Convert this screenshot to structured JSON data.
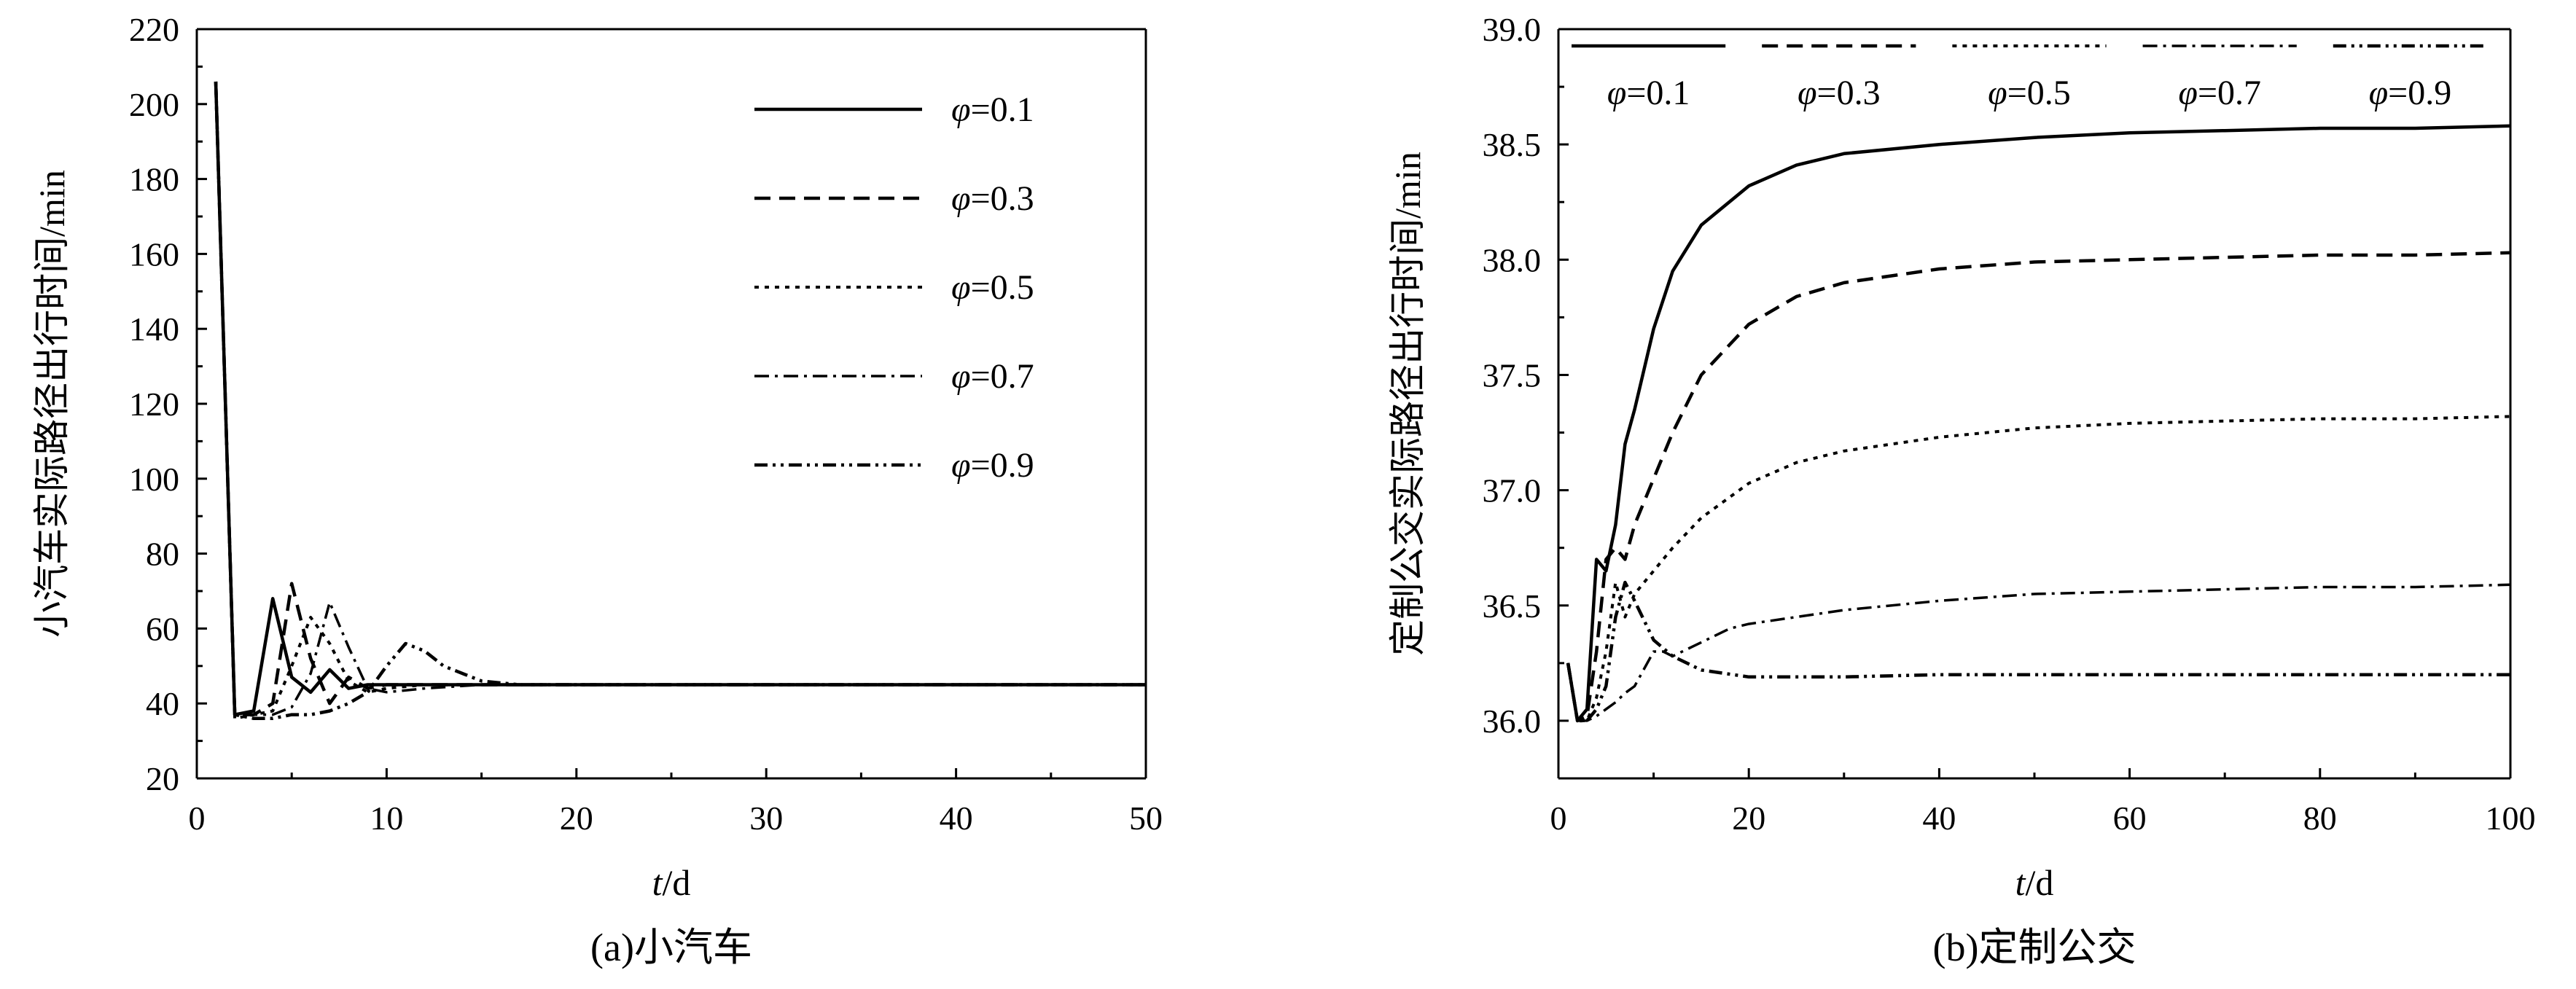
{
  "chart_data": [
    {
      "type": "line",
      "caption": "(a)小汽车",
      "xlabel_var": "t",
      "xlabel_unit": "/d",
      "ylabel": "小汽车实际路径出行时间/min",
      "xlim": [
        0,
        50
      ],
      "ylim": [
        20,
        220
      ],
      "xticks": [
        0,
        10,
        20,
        30,
        40,
        50
      ],
      "yticks": [
        20,
        40,
        60,
        80,
        100,
        120,
        140,
        160,
        180,
        200,
        220
      ],
      "legend_position": "upper-right",
      "series": [
        {
          "name": "φ=0.1",
          "style": "solid",
          "x": [
            1,
            2,
            3,
            4,
            5,
            6,
            7,
            8,
            9,
            10,
            12,
            15,
            20,
            30,
            50
          ],
          "y": [
            206,
            37,
            38,
            68,
            47,
            43,
            49,
            44,
            45,
            45,
            45,
            45,
            45,
            45,
            45
          ]
        },
        {
          "name": "φ=0.3",
          "style": "dashed",
          "x": [
            1,
            2,
            3,
            4,
            5,
            6,
            7,
            8,
            9,
            10,
            12,
            15,
            20,
            30,
            50
          ],
          "y": [
            206,
            37,
            37,
            40,
            72,
            52,
            40,
            47,
            44,
            45,
            45,
            45,
            45,
            45,
            45
          ]
        },
        {
          "name": "φ=0.5",
          "style": "dotted",
          "x": [
            1,
            2,
            3,
            4,
            5,
            6,
            7,
            8,
            9,
            10,
            12,
            15,
            20,
            30,
            50
          ],
          "y": [
            206,
            36,
            37,
            38,
            50,
            63,
            56,
            46,
            43,
            44,
            45,
            45,
            45,
            45,
            45
          ]
        },
        {
          "name": "φ=0.7",
          "style": "dashdot",
          "x": [
            1,
            2,
            3,
            4,
            5,
            6,
            7,
            8,
            9,
            10,
            12,
            15,
            20,
            30,
            50
          ],
          "y": [
            206,
            37,
            37,
            37,
            39,
            48,
            67,
            55,
            44,
            43,
            44,
            45,
            45,
            45,
            45
          ]
        },
        {
          "name": "φ=0.9",
          "style": "dashdotdot",
          "x": [
            1,
            2,
            3,
            4,
            5,
            6,
            7,
            8,
            9,
            10,
            11,
            12,
            13,
            15,
            17,
            20,
            30,
            50
          ],
          "y": [
            206,
            37,
            36,
            36,
            37,
            37,
            38,
            40,
            43,
            50,
            56,
            54,
            50,
            46,
            45,
            45,
            45,
            45
          ]
        }
      ]
    },
    {
      "type": "line",
      "caption": "(b)定制公交",
      "xlabel_var": "t",
      "xlabel_unit": "/d",
      "ylabel": "定制公交实际路径出行时间/min",
      "xlim": [
        0,
        100
      ],
      "ylim": [
        35.75,
        39.0
      ],
      "xticks": [
        0,
        20,
        40,
        60,
        80,
        100
      ],
      "yticks": [
        36.0,
        36.5,
        37.0,
        37.5,
        38.0,
        38.5,
        39.0
      ],
      "ytick_labels": [
        "36.0",
        "36.5",
        "37.0",
        "37.5",
        "38.0",
        "38.5",
        "39.0"
      ],
      "legend_position": "top",
      "series": [
        {
          "name": "φ=0.1",
          "style": "solid",
          "x": [
            1,
            2,
            3,
            4,
            5,
            6,
            7,
            8,
            10,
            12,
            15,
            20,
            25,
            30,
            40,
            50,
            60,
            70,
            80,
            90,
            100
          ],
          "y": [
            36.25,
            36.0,
            36.05,
            36.7,
            36.65,
            36.85,
            37.2,
            37.35,
            37.7,
            37.95,
            38.15,
            38.32,
            38.41,
            38.46,
            38.5,
            38.53,
            38.55,
            38.56,
            38.57,
            38.57,
            38.58
          ]
        },
        {
          "name": "φ=0.3",
          "style": "dashed",
          "x": [
            1,
            2,
            3,
            4,
            5,
            6,
            7,
            8,
            10,
            12,
            15,
            20,
            25,
            30,
            40,
            50,
            60,
            70,
            80,
            90,
            100
          ],
          "y": [
            36.25,
            36.0,
            36.02,
            36.3,
            36.7,
            36.75,
            36.7,
            36.85,
            37.05,
            37.25,
            37.5,
            37.72,
            37.84,
            37.9,
            37.96,
            37.99,
            38.0,
            38.01,
            38.02,
            38.02,
            38.03
          ]
        },
        {
          "name": "φ=0.5",
          "style": "dotted",
          "x": [
            1,
            2,
            3,
            4,
            5,
            6,
            7,
            8,
            10,
            12,
            15,
            20,
            25,
            30,
            40,
            50,
            60,
            70,
            80,
            90,
            100
          ],
          "y": [
            36.25,
            36.0,
            36.0,
            36.1,
            36.3,
            36.6,
            36.45,
            36.55,
            36.65,
            36.75,
            36.88,
            37.03,
            37.12,
            37.17,
            37.23,
            37.27,
            37.29,
            37.3,
            37.31,
            37.31,
            37.32
          ]
        },
        {
          "name": "φ=0.7",
          "style": "dashdot",
          "x": [
            1,
            2,
            3,
            4,
            5,
            6,
            7,
            8,
            10,
            11,
            12,
            15,
            18,
            20,
            25,
            30,
            40,
            50,
            60,
            70,
            80,
            90,
            100
          ],
          "y": [
            36.25,
            36.0,
            36.0,
            36.02,
            36.05,
            36.08,
            36.12,
            36.15,
            36.3,
            36.3,
            36.28,
            36.34,
            36.4,
            36.42,
            36.45,
            36.48,
            36.52,
            36.55,
            36.56,
            36.57,
            36.58,
            36.58,
            36.59
          ]
        },
        {
          "name": "φ=0.9",
          "style": "dashdotdot",
          "x": [
            1,
            2,
            3,
            4,
            5,
            6,
            7,
            8,
            10,
            12,
            15,
            20,
            25,
            30,
            40,
            50,
            60,
            70,
            80,
            90,
            100
          ],
          "y": [
            36.25,
            36.0,
            36.0,
            36.05,
            36.15,
            36.45,
            36.6,
            36.52,
            36.35,
            36.28,
            36.22,
            36.19,
            36.19,
            36.19,
            36.2,
            36.2,
            36.2,
            36.2,
            36.2,
            36.2,
            36.2
          ]
        }
      ]
    }
  ]
}
